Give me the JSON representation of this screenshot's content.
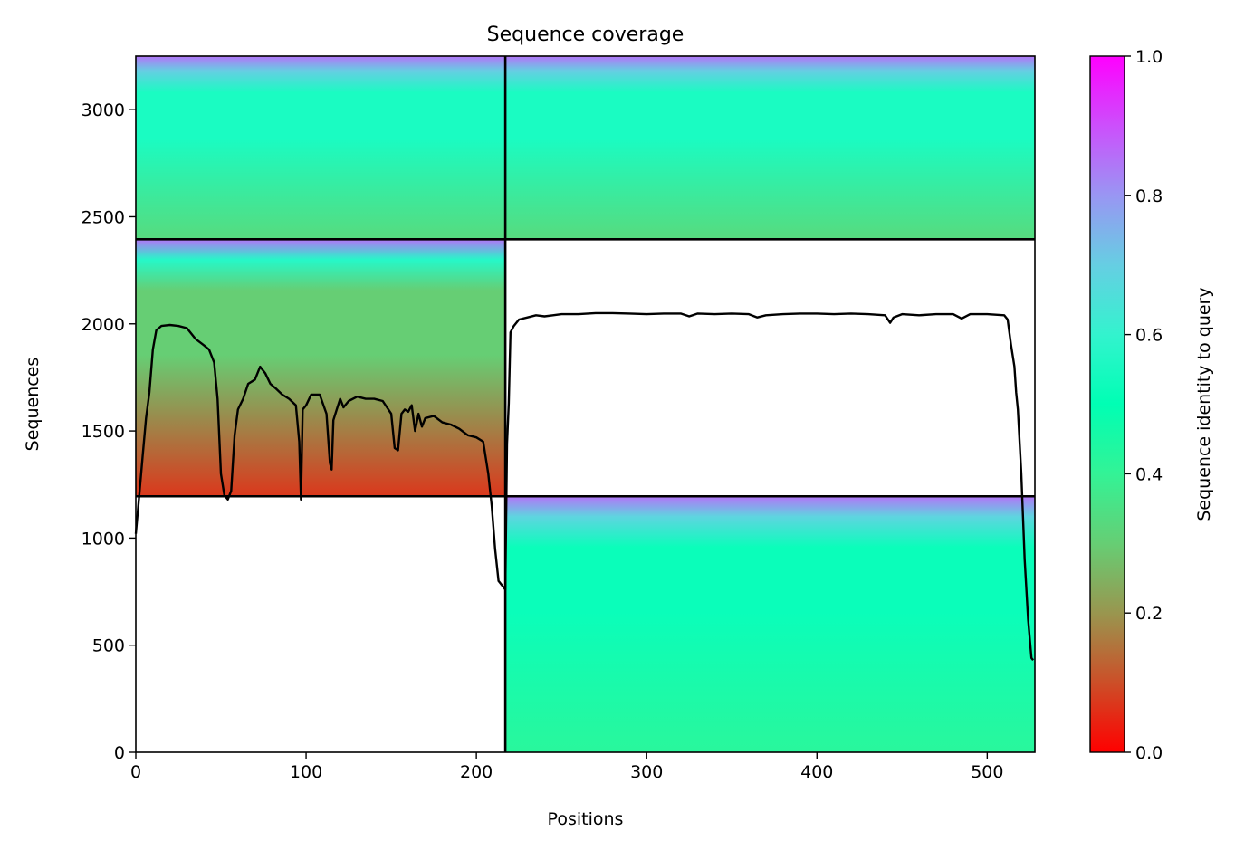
{
  "chart_data": {
    "type": "heatmap",
    "title": "Sequence coverage",
    "xlabel": "Positions",
    "ylabel": "Sequences",
    "xlim": [
      0,
      528
    ],
    "ylim": [
      0,
      3250
    ],
    "x_ticks": [
      0,
      100,
      200,
      300,
      400,
      500
    ],
    "y_ticks": [
      0,
      500,
      1000,
      1500,
      2000,
      2500,
      3000
    ],
    "grid": false,
    "colorbar": {
      "label": "Sequence identity to query",
      "range": [
        0,
        1
      ],
      "ticks": [
        0.0,
        0.2,
        0.4,
        0.6,
        0.8,
        1.0
      ],
      "tick_labels": [
        "0.0",
        "0.2",
        "0.4",
        "0.6",
        "0.8",
        "1.0"
      ],
      "colormap": "rainbow_r"
    },
    "divider_x": 217,
    "divider_y": [
      1195,
      2395
    ],
    "blocks": [
      {
        "x": [
          217,
          528
        ],
        "y": [
          0,
          1195
        ],
        "identity_bottom": 0.42,
        "identity_mid": 0.52,
        "identity_top": 0.85
      },
      {
        "x": [
          0,
          217
        ],
        "y": [
          1195,
          2395
        ],
        "identity_bottom": 0.07,
        "identity_mid": 0.3,
        "identity_top": 0.85
      },
      {
        "x": [
          0,
          217
        ],
        "y": [
          2395,
          3250
        ],
        "identity_bottom": 0.33,
        "identity_mid": 0.55,
        "identity_top": 0.85
      },
      {
        "x": [
          217,
          528
        ],
        "y": [
          2395,
          3250
        ],
        "identity_bottom": 0.33,
        "identity_mid": 0.55,
        "identity_top": 0.85
      }
    ],
    "coverage_line": {
      "x": [
        0,
        2,
        4,
        6,
        8,
        10,
        12,
        15,
        20,
        25,
        30,
        35,
        40,
        43,
        46,
        48,
        50,
        52,
        54,
        56,
        58,
        60,
        63,
        66,
        70,
        73,
        76,
        79,
        82,
        86,
        90,
        94,
        96,
        97,
        98,
        100,
        103,
        108,
        112,
        114,
        115,
        116,
        118,
        120,
        122,
        125,
        130,
        135,
        140,
        145,
        150,
        152,
        154,
        156,
        158,
        160,
        162,
        164,
        166,
        168,
        170,
        175,
        180,
        185,
        190,
        195,
        200,
        204,
        207,
        209,
        211,
        213,
        215,
        217,
        218,
        219,
        220,
        222,
        225,
        230,
        235,
        240,
        245,
        250,
        260,
        270,
        280,
        290,
        300,
        310,
        320,
        325,
        330,
        340,
        350,
        360,
        365,
        370,
        380,
        390,
        400,
        410,
        420,
        430,
        440,
        443,
        445,
        450,
        460,
        470,
        480,
        485,
        490,
        500,
        510,
        512,
        514,
        516,
        517,
        518,
        520,
        522,
        524,
        526,
        527
      ],
      "y": [
        1020,
        1200,
        1380,
        1560,
        1680,
        1880,
        1970,
        1990,
        1995,
        1990,
        1980,
        1930,
        1900,
        1880,
        1820,
        1650,
        1300,
        1200,
        1180,
        1220,
        1480,
        1600,
        1650,
        1720,
        1740,
        1800,
        1770,
        1720,
        1700,
        1670,
        1650,
        1620,
        1450,
        1180,
        1600,
        1620,
        1670,
        1670,
        1580,
        1350,
        1320,
        1550,
        1600,
        1650,
        1610,
        1640,
        1660,
        1650,
        1650,
        1640,
        1580,
        1420,
        1410,
        1580,
        1600,
        1590,
        1620,
        1500,
        1580,
        1520,
        1560,
        1570,
        1540,
        1530,
        1510,
        1480,
        1470,
        1450,
        1300,
        1150,
        950,
        800,
        780,
        760,
        1440,
        1630,
        1960,
        1990,
        2020,
        2030,
        2040,
        2035,
        2040,
        2045,
        2045,
        2050,
        2050,
        2048,
        2045,
        2048,
        2048,
        2035,
        2048,
        2045,
        2048,
        2045,
        2030,
        2040,
        2045,
        2048,
        2048,
        2045,
        2048,
        2045,
        2040,
        2005,
        2030,
        2045,
        2040,
        2045,
        2045,
        2025,
        2045,
        2045,
        2040,
        2020,
        1900,
        1800,
        1680,
        1600,
        1300,
        900,
        620,
        440,
        430
      ]
    }
  }
}
